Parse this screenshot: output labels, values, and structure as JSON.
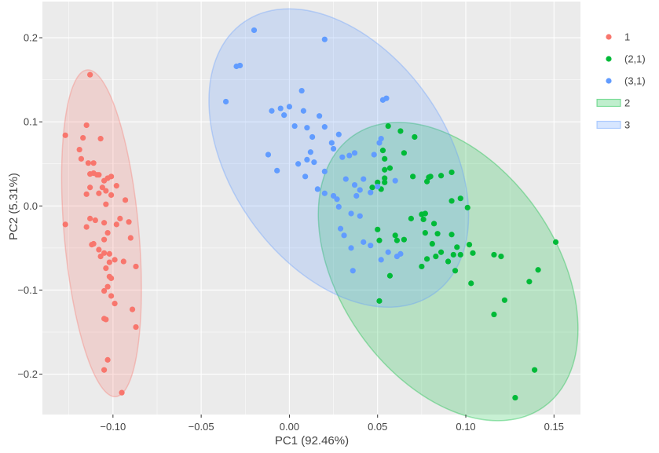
{
  "chart_data": {
    "type": "scatter",
    "title": "",
    "xlabel": "PC1 (92.46%)",
    "ylabel": "PC2 (5.31%)",
    "xlim": [
      -0.14,
      0.165
    ],
    "ylim": [
      -0.248,
      0.243
    ],
    "xticks": [
      -0.1,
      -0.05,
      0,
      0.05,
      0.1,
      0.15
    ],
    "xtick_labels": [
      "−0.10",
      "−0.05",
      "0.00",
      "0.05",
      "0.10",
      "0.15"
    ],
    "yticks": [
      -0.2,
      -0.1,
      0,
      0.1,
      0.2
    ],
    "ytick_labels": [
      "−0.2",
      "−0.1",
      "0.0",
      "0.1",
      "0.2"
    ],
    "grid": true,
    "legend_position": "right",
    "colors": {
      "s1": "#F8766D",
      "s2": "#00BA38",
      "s3": "#619CFF",
      "panel": "#EBEBEB",
      "grid": "#FFFFFF"
    },
    "series": [
      {
        "name": "1",
        "color": "#F8766D",
        "points": [
          [
            -0.113,
            0.156
          ],
          [
            -0.127,
            0.084
          ],
          [
            -0.115,
            0.096
          ],
          [
            -0.117,
            0.081
          ],
          [
            -0.107,
            0.08
          ],
          [
            -0.119,
            0.067
          ],
          [
            -0.118,
            0.056
          ],
          [
            -0.114,
            0.051
          ],
          [
            -0.111,
            0.051
          ],
          [
            -0.113,
            0.038
          ],
          [
            -0.111,
            0.039
          ],
          [
            -0.109,
            0.037
          ],
          [
            -0.108,
            0.037
          ],
          [
            -0.101,
            0.035
          ],
          [
            -0.103,
            0.033
          ],
          [
            -0.105,
            0.03
          ],
          [
            -0.098,
            0.024
          ],
          [
            -0.106,
            0.022
          ],
          [
            -0.113,
            0.022
          ],
          [
            -0.104,
            0.018
          ],
          [
            -0.115,
            0.014
          ],
          [
            -0.108,
            0.015
          ],
          [
            -0.101,
            0.013
          ],
          [
            -0.093,
            0.007
          ],
          [
            -0.104,
            0.002
          ],
          [
            -0.113,
            -0.015
          ],
          [
            -0.11,
            -0.017
          ],
          [
            -0.096,
            -0.015
          ],
          [
            -0.105,
            -0.02
          ],
          [
            -0.127,
            -0.022
          ],
          [
            -0.115,
            -0.025
          ],
          [
            -0.098,
            -0.022
          ],
          [
            -0.091,
            -0.019
          ],
          [
            -0.103,
            -0.032
          ],
          [
            -0.105,
            -0.04
          ],
          [
            -0.09,
            -0.038
          ],
          [
            -0.111,
            -0.045
          ],
          [
            -0.112,
            -0.046
          ],
          [
            -0.108,
            -0.052
          ],
          [
            -0.105,
            -0.056
          ],
          [
            -0.102,
            -0.057
          ],
          [
            -0.107,
            -0.06
          ],
          [
            -0.099,
            -0.064
          ],
          [
            -0.102,
            -0.067
          ],
          [
            -0.094,
            -0.066
          ],
          [
            -0.087,
            -0.072
          ],
          [
            -0.104,
            -0.074
          ],
          [
            -0.101,
            -0.086
          ],
          [
            -0.102,
            -0.084
          ],
          [
            -0.103,
            -0.096
          ],
          [
            -0.105,
            -0.101
          ],
          [
            -0.101,
            -0.107
          ],
          [
            -0.099,
            -0.116
          ],
          [
            -0.089,
            -0.123
          ],
          [
            -0.105,
            -0.134
          ],
          [
            -0.104,
            -0.135
          ],
          [
            -0.103,
            -0.183
          ],
          [
            -0.105,
            -0.195
          ],
          [
            -0.087,
            -0.144
          ],
          [
            -0.095,
            -0.222
          ]
        ]
      },
      {
        "name": "(2,1)",
        "color": "#00BA38",
        "points": [
          [
            0.056,
            0.095
          ],
          [
            0.063,
            0.089
          ],
          [
            0.071,
            0.082
          ],
          [
            0.053,
            0.066
          ],
          [
            0.065,
            0.063
          ],
          [
            0.054,
            0.056
          ],
          [
            0.057,
            0.045
          ],
          [
            0.054,
            0.043
          ],
          [
            0.054,
            0.033
          ],
          [
            0.05,
            0.028
          ],
          [
            0.054,
            0.028
          ],
          [
            0.047,
            0.022
          ],
          [
            0.07,
            0.035
          ],
          [
            0.079,
            0.034
          ],
          [
            0.08,
            0.035
          ],
          [
            0.092,
            0.04
          ],
          [
            0.078,
            0.029
          ],
          [
            0.086,
            0.036
          ],
          [
            0.052,
            0.02
          ],
          [
            0.097,
            0.009
          ],
          [
            0.101,
            -0.002
          ],
          [
            0.092,
            0.006
          ],
          [
            0.075,
            -0.01
          ],
          [
            0.077,
            -0.009
          ],
          [
            0.069,
            -0.015
          ],
          [
            0.082,
            -0.021
          ],
          [
            0.076,
            -0.016
          ],
          [
            0.06,
            -0.035
          ],
          [
            0.05,
            -0.028
          ],
          [
            0.051,
            -0.041
          ],
          [
            0.065,
            -0.04
          ],
          [
            0.077,
            -0.032
          ],
          [
            0.084,
            -0.033
          ],
          [
            0.092,
            -0.034
          ],
          [
            0.081,
            -0.045
          ],
          [
            0.086,
            -0.055
          ],
          [
            0.102,
            -0.046
          ],
          [
            0.095,
            -0.049
          ],
          [
            0.093,
            -0.058
          ],
          [
            0.097,
            -0.058
          ],
          [
            0.09,
            -0.066
          ],
          [
            0.104,
            -0.056
          ],
          [
            0.083,
            -0.06
          ],
          [
            0.12,
            -0.06
          ],
          [
            0.116,
            -0.058
          ],
          [
            0.078,
            -0.063
          ],
          [
            0.103,
            -0.092
          ],
          [
            0.094,
            -0.077
          ],
          [
            0.061,
            -0.041
          ],
          [
            0.075,
            -0.072
          ],
          [
            0.057,
            -0.083
          ],
          [
            0.141,
            -0.076
          ],
          [
            0.136,
            -0.09
          ],
          [
            0.051,
            -0.113
          ],
          [
            0.122,
            -0.112
          ],
          [
            0.116,
            -0.129
          ],
          [
            0.151,
            -0.043
          ],
          [
            0.139,
            -0.195
          ],
          [
            0.128,
            -0.228
          ]
        ]
      },
      {
        "name": "(3,1)",
        "color": "#619CFF",
        "points": [
          [
            -0.02,
            0.209
          ],
          [
            0.02,
            0.198
          ],
          [
            -0.03,
            0.166
          ],
          [
            -0.028,
            0.167
          ],
          [
            -0.036,
            0.124
          ],
          [
            0.007,
            0.137
          ],
          [
            0.055,
            0.128
          ],
          [
            0.053,
            0.126
          ],
          [
            0.0,
            0.118
          ],
          [
            -0.01,
            0.113
          ],
          [
            -0.005,
            0.116
          ],
          [
            -0.003,
            0.108
          ],
          [
            0.017,
            0.107
          ],
          [
            0.02,
            0.094
          ],
          [
            0.008,
            0.113
          ],
          [
            0.01,
            0.093
          ],
          [
            0.003,
            0.095
          ],
          [
            0.028,
            0.085
          ],
          [
            -0.012,
            0.061
          ],
          [
            0.013,
            0.082
          ],
          [
            0.024,
            0.075
          ],
          [
            0.051,
            0.075
          ],
          [
            0.012,
            0.064
          ],
          [
            0.037,
            0.063
          ],
          [
            0.025,
            0.068
          ],
          [
            0.048,
            0.061
          ],
          [
            -0.007,
            0.042
          ],
          [
            0.02,
            0.041
          ],
          [
            0.03,
            0.058
          ],
          [
            0.034,
            0.06
          ],
          [
            0.014,
            0.052
          ],
          [
            0.005,
            0.05
          ],
          [
            0.01,
            0.055
          ],
          [
            0.052,
            0.08
          ],
          [
            0.06,
            0.03
          ],
          [
            0.042,
            0.032
          ],
          [
            0.05,
            0.023
          ],
          [
            0.037,
            0.025
          ],
          [
            0.032,
            0.032
          ],
          [
            0.04,
            0.019
          ],
          [
            0.046,
            0.016
          ],
          [
            0.038,
            0.012
          ],
          [
            0.009,
            0.035
          ],
          [
            0.016,
            0.02
          ],
          [
            0.02,
            0.015
          ],
          [
            0.025,
            0.012
          ],
          [
            0.028,
            -0.001
          ],
          [
            0.027,
            0.008
          ],
          [
            0.035,
            -0.009
          ],
          [
            0.04,
            -0.012
          ],
          [
            0.029,
            -0.027
          ],
          [
            0.031,
            -0.035
          ],
          [
            0.042,
            -0.043
          ],
          [
            0.035,
            -0.05
          ],
          [
            0.046,
            -0.047
          ],
          [
            0.056,
            -0.055
          ],
          [
            0.063,
            -0.057
          ],
          [
            0.052,
            -0.064
          ],
          [
            0.036,
            -0.077
          ],
          [
            0.061,
            -0.06
          ]
        ]
      }
    ],
    "ellipses": [
      {
        "name": "1",
        "color": "#F8766D",
        "center": [
          -0.1065,
          -0.0325
        ],
        "rx": 0.0212,
        "ry": 0.195,
        "angle": -5
      },
      {
        "name": "2",
        "color": "#00BA38",
        "center": [
          0.09,
          -0.078
        ],
        "rx": 0.0612,
        "ry": 0.197,
        "angle": -35
      },
      {
        "name": "3",
        "color": "#619CFF",
        "center": [
          0.028,
          0.057
        ],
        "rx": 0.0612,
        "ry": 0.197,
        "angle": -35
      }
    ],
    "legend": [
      {
        "label": "1",
        "kind": "point",
        "color": "#F8766D"
      },
      {
        "label": "(2,1)",
        "kind": "point",
        "color": "#00BA38"
      },
      {
        "label": "(3,1)",
        "kind": "point",
        "color": "#619CFF"
      },
      {
        "label": "2",
        "kind": "area",
        "color": "#00BA38"
      },
      {
        "label": "3",
        "kind": "area",
        "color": "#619CFF"
      }
    ]
  }
}
